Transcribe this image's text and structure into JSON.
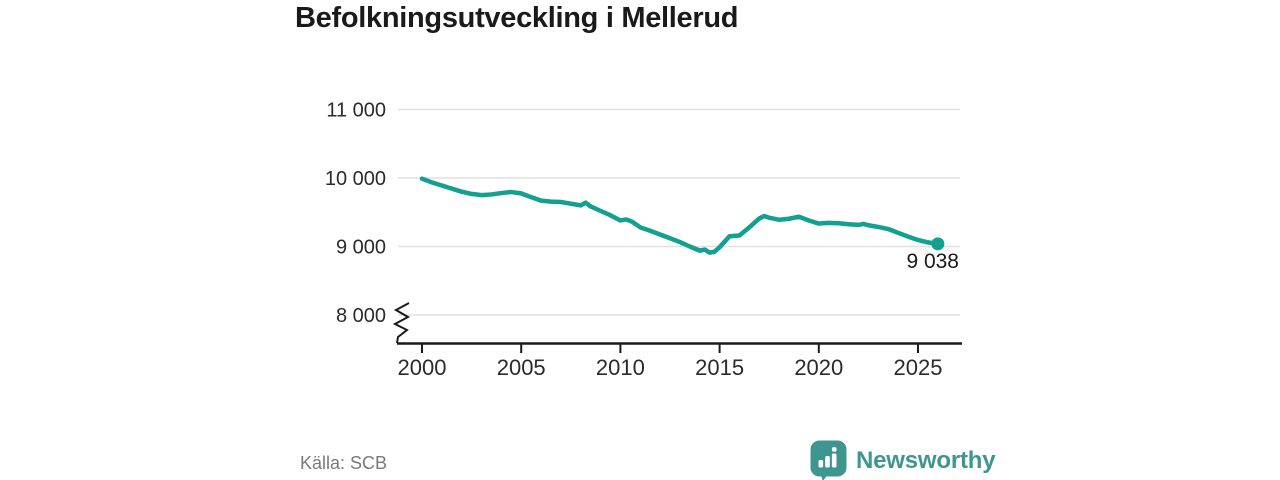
{
  "title": "Befolkningsutveckling i Mellerud",
  "source": "Källa: SCB",
  "logo": {
    "name": "Newsworthy",
    "icon": "newsworthy-chart-bubble-icon"
  },
  "colors": {
    "line": "#12a091",
    "logo_teal": "#3f968e",
    "grid": "#e0e0e0",
    "axis": "#1a1a1a",
    "tick_text": "#2b2b2b",
    "muted_text": "#7a7a7a",
    "background": "#ffffff"
  },
  "chart_data": {
    "type": "line",
    "title": "Befolkningsutveckling i Mellerud",
    "source": "Källa: SCB",
    "xlabel": "",
    "ylabel": "",
    "grid": "horizontal",
    "legend": "none",
    "y_axis_break": true,
    "x_ticks": [
      2000,
      2005,
      2010,
      2015,
      2020,
      2025
    ],
    "x_tick_labels": [
      "2000",
      "2005",
      "2010",
      "2015",
      "2020",
      "2025"
    ],
    "y_ticks": [
      8000,
      9000,
      10000,
      11000
    ],
    "y_tick_labels": [
      "8 000",
      "9 000",
      "10 000",
      "11 000"
    ],
    "xlim": [
      1998.8,
      2027.2
    ],
    "ylim": [
      7750,
      11250
    ],
    "series": [
      {
        "name": "Befolkning i Mellerud",
        "x": [
          2000,
          2000.5,
          2001,
          2001.5,
          2002,
          2002.5,
          2003,
          2003.5,
          2004,
          2004.5,
          2005,
          2005.5,
          2006,
          2006.5,
          2007,
          2007.5,
          2008,
          2008.25,
          2008.5,
          2009,
          2009.5,
          2010,
          2010.3,
          2010.6,
          2011,
          2011.5,
          2012,
          2012.5,
          2013,
          2013.5,
          2014,
          2014.25,
          2014.5,
          2014.75,
          2015,
          2015.5,
          2016,
          2016.5,
          2017,
          2017.25,
          2017.5,
          2018,
          2018.5,
          2019,
          2019.5,
          2020,
          2020.5,
          2021,
          2021.5,
          2022,
          2022.25,
          2022.5,
          2023,
          2023.5,
          2024,
          2024.5,
          2025,
          2025.5,
          2026
        ],
        "y": [
          9990,
          9935,
          9890,
          9845,
          9800,
          9768,
          9750,
          9760,
          9780,
          9795,
          9775,
          9720,
          9670,
          9655,
          9650,
          9625,
          9600,
          9640,
          9585,
          9520,
          9455,
          9380,
          9395,
          9360,
          9280,
          9230,
          9175,
          9120,
          9065,
          9000,
          8940,
          8955,
          8910,
          8925,
          8990,
          9150,
          9160,
          9280,
          9410,
          9445,
          9420,
          9390,
          9405,
          9435,
          9380,
          9335,
          9345,
          9340,
          9325,
          9315,
          9330,
          9310,
          9285,
          9255,
          9200,
          9145,
          9095,
          9060,
          9038
        ]
      }
    ],
    "last_point": {
      "x": 2026,
      "y": 9038,
      "label": "9 038"
    }
  }
}
